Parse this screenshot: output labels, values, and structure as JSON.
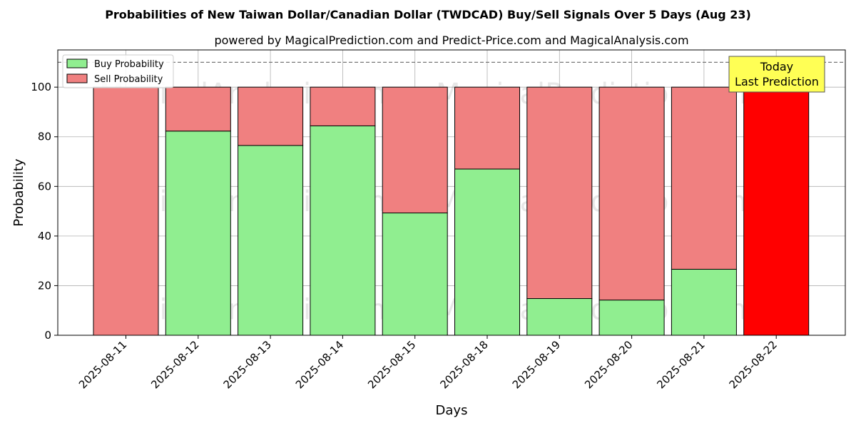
{
  "chart_data": {
    "type": "bar",
    "stacked": true,
    "title": "Probabilities of New Taiwan Dollar/Canadian Dollar (TWDCAD) Buy/Sell Signals Over 5 Days (Aug 23)",
    "subtitle": "powered by MagicalPrediction.com and Predict-Price.com and MagicalAnalysis.com",
    "xlabel": "Days",
    "ylabel": "Probability",
    "ylim": [
      0,
      115
    ],
    "yticks": [
      0,
      20,
      40,
      60,
      80,
      100
    ],
    "grid": true,
    "legend_position": "top-left",
    "reference_line": 110,
    "categories": [
      "2025-08-11",
      "2025-08-12",
      "2025-08-13",
      "2025-08-14",
      "2025-08-15",
      "2025-08-18",
      "2025-08-19",
      "2025-08-20",
      "2025-08-21",
      "2025-08-22"
    ],
    "series": [
      {
        "name": "Buy Probability",
        "color": "#90ee90",
        "values": [
          0,
          82.3,
          76.5,
          84.4,
          49.3,
          67.0,
          14.8,
          14.2,
          26.6,
          0
        ]
      },
      {
        "name": "Sell Probability",
        "color": "#f08080",
        "values": [
          100,
          17.7,
          23.5,
          15.6,
          50.7,
          33.0,
          85.2,
          85.8,
          73.4,
          100
        ]
      }
    ],
    "highlight": {
      "index": 9,
      "color": "#ff0000"
    },
    "annotation": "Today\nLast Prediction",
    "annotation_color": "#ffff55",
    "watermarks": [
      "MagicalAnalysis.com",
      "MagicalPrediction.com"
    ]
  }
}
